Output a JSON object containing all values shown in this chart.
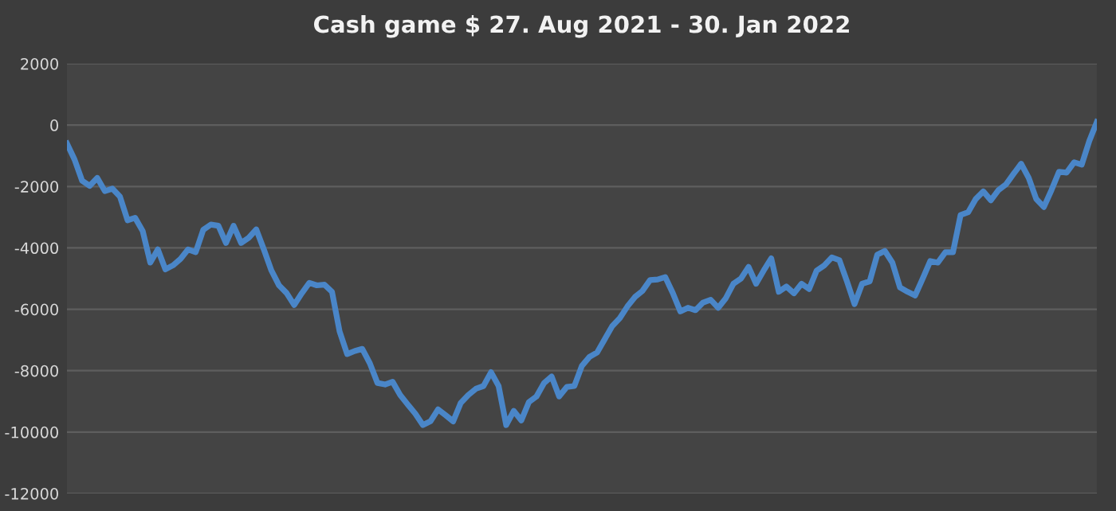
{
  "chart_data": {
    "type": "line",
    "title": "Cash game $ 27. Aug 2021 - 30. Jan 2022",
    "categories": [
      null,
      null,
      null,
      null,
      null,
      null,
      null,
      null,
      null,
      null,
      null,
      null,
      null,
      null,
      null,
      null,
      null,
      null,
      null,
      null,
      null,
      null,
      null,
      null,
      null,
      null,
      null,
      null,
      null,
      null,
      null,
      null,
      null,
      null,
      null,
      null,
      null,
      null,
      null,
      null,
      null,
      null,
      null,
      null,
      null,
      null,
      null,
      null,
      null,
      null,
      null,
      null,
      null,
      null,
      null,
      null,
      null,
      null,
      null,
      null,
      null,
      null,
      null,
      null,
      null,
      null,
      null,
      null,
      null,
      null,
      null,
      null,
      null,
      null,
      null,
      null,
      null,
      null,
      null,
      null,
      null,
      null,
      null,
      null,
      null,
      null,
      null,
      null,
      null,
      null,
      null,
      null,
      null,
      null,
      null,
      null,
      null,
      null,
      null,
      null,
      null,
      null,
      null,
      null,
      null,
      null,
      null,
      null,
      null,
      null,
      null,
      null,
      null,
      null,
      null,
      null,
      null,
      null,
      null,
      null,
      null,
      null,
      null,
      null,
      null,
      null,
      null,
      null,
      null,
      null,
      null,
      null,
      null,
      null,
      null,
      null,
      null
    ],
    "series": [
      {
        "color": "#4a86c8",
        "values": [
          -600,
          -1120,
          -1810,
          -1980,
          -1720,
          -2150,
          -2070,
          -2330,
          -3100,
          -3020,
          -3450,
          -4480,
          -4050,
          -4700,
          -4570,
          -4360,
          -4050,
          -4140,
          -3410,
          -3240,
          -3280,
          -3840,
          -3280,
          -3840,
          -3670,
          -3400,
          -4050,
          -4740,
          -5220,
          -5470,
          -5860,
          -5480,
          -5140,
          -5220,
          -5200,
          -5430,
          -6720,
          -7460,
          -7360,
          -7290,
          -7760,
          -8400,
          -8450,
          -8360,
          -8790,
          -9100,
          -9400,
          -9770,
          -9650,
          -9260,
          -9450,
          -9650,
          -9050,
          -8790,
          -8590,
          -8500,
          -8050,
          -8500,
          -9770,
          -9310,
          -9620,
          -9020,
          -8840,
          -8400,
          -8190,
          -8840,
          -8530,
          -8500,
          -7840,
          -7550,
          -7410,
          -6980,
          -6550,
          -6290,
          -5910,
          -5600,
          -5400,
          -5050,
          -5030,
          -4950,
          -5470,
          -6070,
          -5950,
          -6030,
          -5780,
          -5690,
          -5950,
          -5640,
          -5170,
          -5000,
          -4620,
          -5170,
          -4740,
          -4340,
          -5430,
          -5260,
          -5480,
          -5170,
          -5340,
          -4740,
          -4570,
          -4310,
          -4400,
          -5090,
          -5830,
          -5170,
          -5090,
          -4220,
          -4100,
          -4480,
          -5290,
          -5430,
          -5550,
          -5000,
          -4430,
          -4480,
          -4140,
          -4140,
          -2930,
          -2840,
          -2410,
          -2160,
          -2450,
          -2120,
          -1930,
          -1590,
          -1260,
          -1720,
          -2410,
          -2670,
          -2120,
          -1520,
          -1550,
          -1210,
          -1290,
          -520,
          100
        ]
      }
    ],
    "ylim": [
      -12000,
      2000
    ],
    "yticks": [
      -12000,
      -10000,
      -8000,
      -6000,
      -4000,
      -2000,
      0,
      2000
    ],
    "grid": "y",
    "marker": "none",
    "line_style": "solid",
    "tick_labels": "y"
  }
}
